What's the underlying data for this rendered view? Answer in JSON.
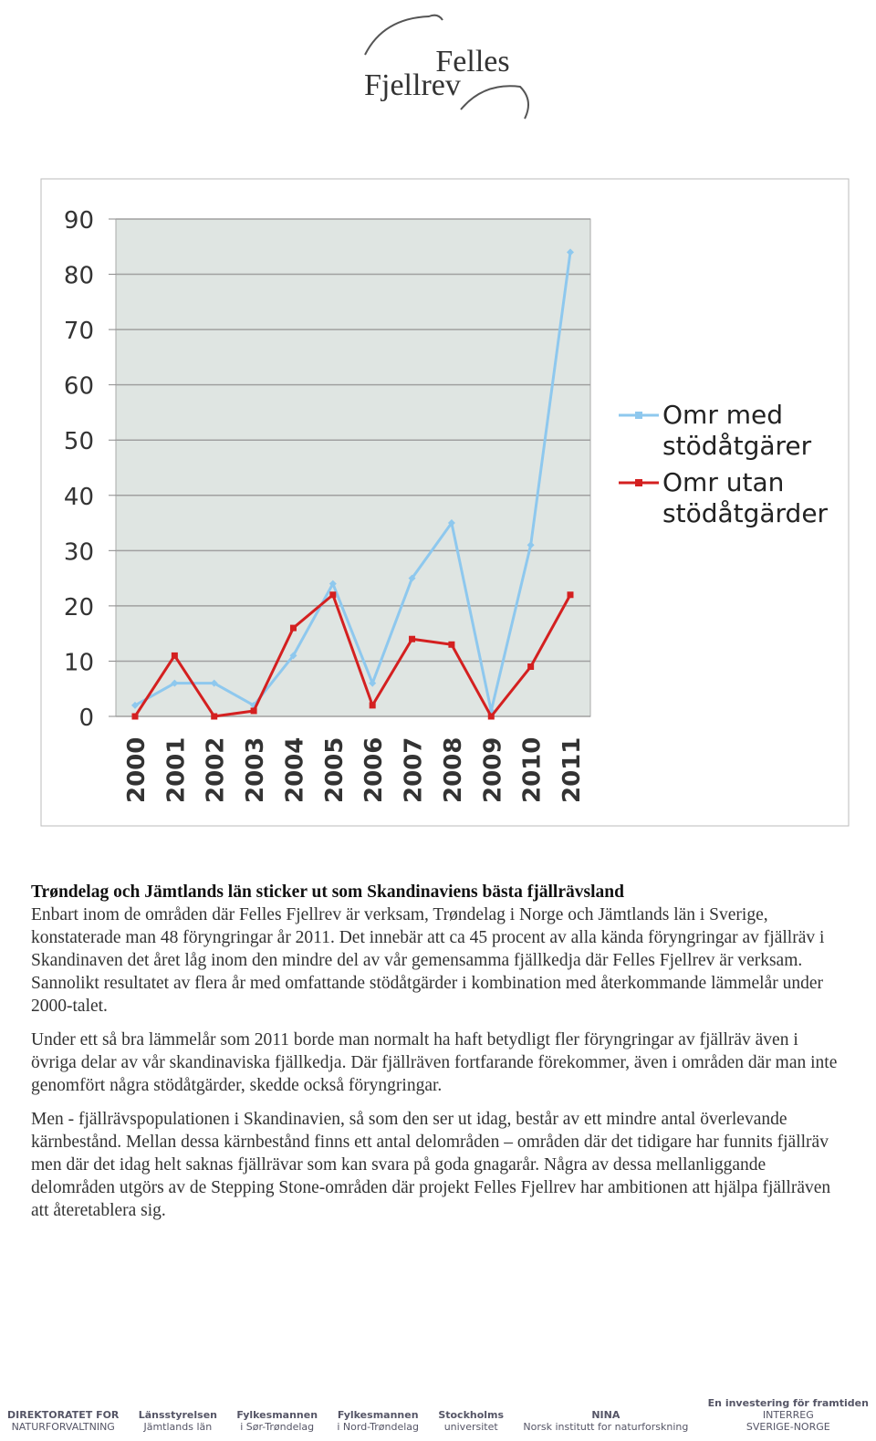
{
  "logo": {
    "line1": "Felles",
    "line2": "Fjellrev"
  },
  "chart_data": {
    "type": "line",
    "categories": [
      "2000",
      "2001",
      "2002",
      "2003",
      "2004",
      "2005",
      "2006",
      "2007",
      "2008",
      "2009",
      "2010",
      "2011"
    ],
    "series": [
      {
        "name": "Omr med stödåtgärer",
        "color": "#8ec8ee",
        "marker": "diamond",
        "values": [
          2,
          6,
          6,
          2,
          11,
          24,
          6,
          25,
          35,
          1,
          31,
          84
        ]
      },
      {
        "name": "Omr utan stödåtgärder",
        "color": "#d42020",
        "marker": "square",
        "values": [
          0,
          11,
          0,
          1,
          16,
          22,
          2,
          14,
          13,
          0,
          9,
          22
        ]
      }
    ],
    "ylim": [
      0,
      90
    ],
    "yticks": [
      0,
      10,
      20,
      30,
      40,
      50,
      60,
      70,
      80,
      90
    ],
    "grid": true,
    "legend": "right"
  },
  "article": {
    "heading": "Trøndelag och Jämtlands län sticker ut som Skandinaviens bästa fjällrävsland",
    "paragraphs": [
      "Enbart inom de områden där Felles Fjellrev är verksam, Trøndelag i Norge och Jämtlands län i Sverige, konstaterade man 48 föryngringar år 2011. Det innebär att ca 45 procent av alla kända föryngringar av fjällräv i Skandinaven det året låg inom den mindre del av vår gemensamma fjällkedja där Felles Fjellrev är verksam. Sannolikt resultatet av flera år med omfattande stödåtgärder i kombination med återkommande lämmelår under 2000-talet.",
      "Under ett så bra lämmelår som 2011 borde man normalt ha haft betydligt fler föryngringar av fjällräv även i övriga delar av vår skandinaviska fjällkedja. Där fjällräven fortfarande förekommer, även i områden där man inte genomfört några stödåtgärder, skedde också föryngringar.",
      "Men - fjällrävspopulationen i Skandinavien, så som den ser ut idag, består av ett mindre antal överlevande kärnbestånd. Mellan dessa kärnbestånd finns ett antal delområden – områden där det tidigare har funnits fjällräv men där det idag helt saknas fjällrävar som kan svara på goda gnagarår. Några av dessa mellanliggande delområden utgörs av de Stepping Stone-områden där projekt Felles Fjellrev har ambitionen att hjälpa fjällräven att återetablera sig."
    ]
  },
  "footer": {
    "logos": [
      {
        "lines": [
          "DIREKTORATET FOR",
          "NATURFORVALTNING"
        ]
      },
      {
        "lines": [
          "Länsstyrelsen",
          "Jämtlands län"
        ]
      },
      {
        "lines": [
          "Fylkesmannen",
          "i Sør-Trøndelag"
        ]
      },
      {
        "lines": [
          "Fylkesmannen",
          "i Nord-Trøndelag"
        ]
      },
      {
        "lines": [
          "Stockholms",
          "universitet"
        ]
      },
      {
        "lines": [
          "NINA",
          "Norsk institutt for naturforskning"
        ]
      },
      {
        "lines": [
          "En investering för framtiden",
          "INTERREG",
          "SVERIGE-NORGE"
        ]
      }
    ]
  }
}
